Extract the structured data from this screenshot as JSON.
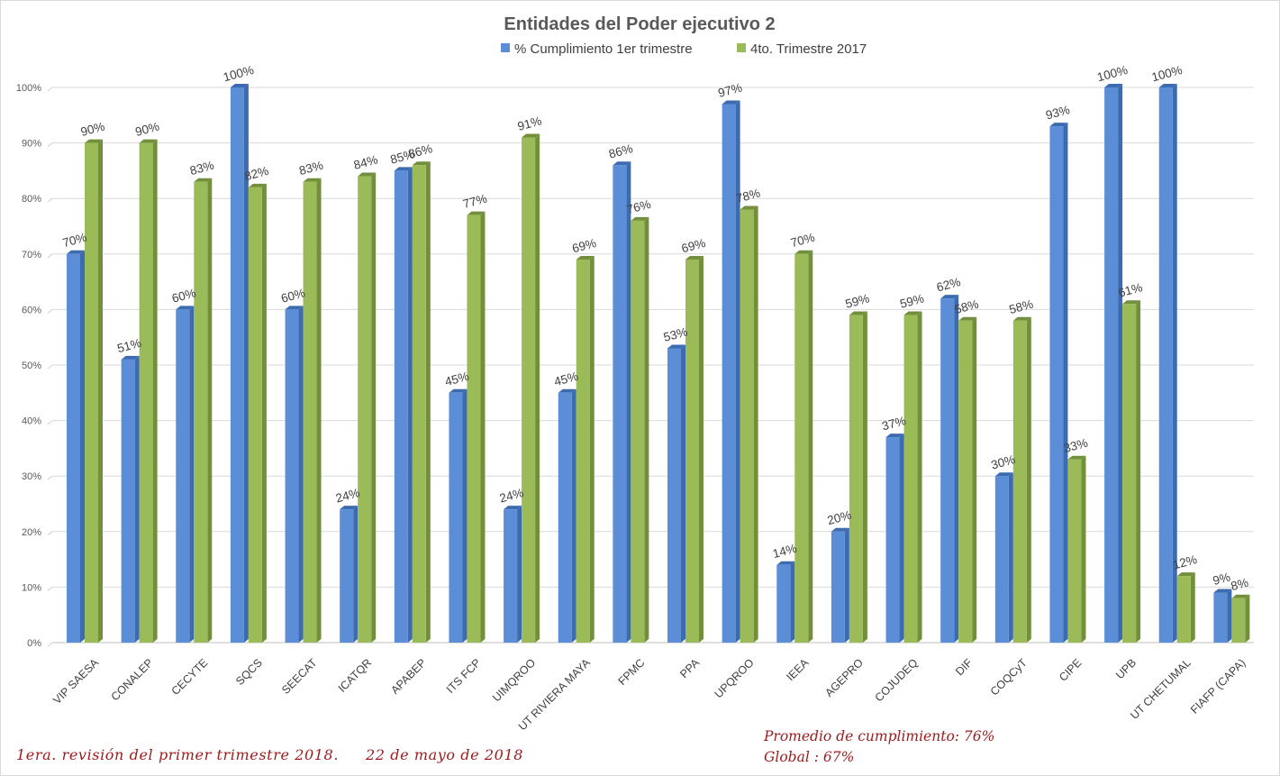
{
  "chart_data": {
    "type": "bar",
    "title": "Entidades del Poder ejecutivo 2",
    "xlabel": "",
    "ylabel": "",
    "ylim": [
      0,
      100
    ],
    "yticks": [
      "0%",
      "10%",
      "20%",
      "30%",
      "40%",
      "50%",
      "60%",
      "70%",
      "80%",
      "90%",
      "100%"
    ],
    "grid": true,
    "legend_position": "top",
    "categories": [
      "VIP SAESA",
      "CONALEP",
      "CECYTE",
      "SQCS",
      "SEECAT",
      "ICATQR",
      "APABEP",
      "ITS FCP",
      "UIMQROO",
      "UT RIVIERA MAYA",
      "FPMC",
      "PPA",
      "UPQROO",
      "IEEA",
      "AGEPRO",
      "COJUDEQ",
      "DIF",
      "COQCyT",
      "CIPE",
      "UPB",
      "UT CHETUMAL",
      "FIAFP (CAPA)"
    ],
    "series": [
      {
        "name": "% Cumplimiento 1er trimestre",
        "color": "#5b8ed6",
        "values": [
          70,
          51,
          60,
          100,
          60,
          24,
          85,
          45,
          24,
          45,
          86,
          53,
          97,
          14,
          20,
          37,
          62,
          30,
          93,
          100,
          100,
          9
        ]
      },
      {
        "name": "4to. Trimestre 2017",
        "color": "#9bbb59",
        "values": [
          90,
          90,
          83,
          82,
          83,
          84,
          86,
          77,
          91,
          69,
          76,
          69,
          78,
          70,
          59,
          59,
          58,
          58,
          33,
          61,
          12,
          8
        ]
      }
    ]
  },
  "notes": {
    "revision": "1era. revisión del primer trimestre 2018.",
    "date": "22 de mayo de 2018",
    "promedio": "Promedio de cumplimiento: 76%",
    "global": "Global : 67%"
  }
}
